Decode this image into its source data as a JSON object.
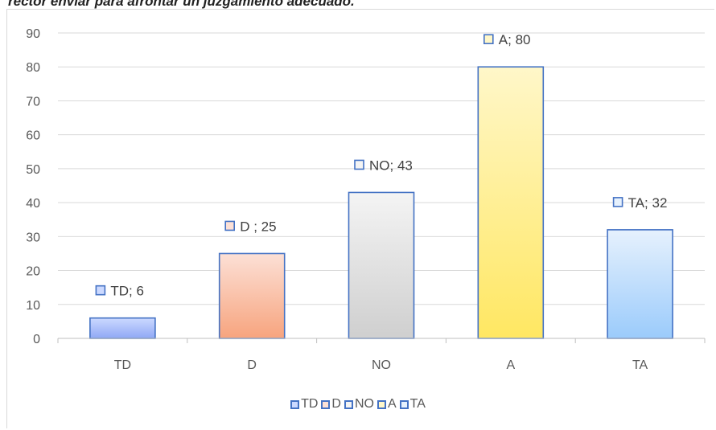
{
  "caption": "rector enviar para afrontar un juzgamiento adecuado.",
  "chart_data": {
    "type": "bar",
    "categories": [
      "TD",
      "D",
      "NO",
      "A",
      "TA"
    ],
    "values": [
      6,
      25,
      43,
      80,
      32
    ],
    "data_labels": [
      "TD; 6",
      "D ; 25",
      "NO; 43",
      "A; 80",
      "TA; 32"
    ],
    "ylim": [
      0,
      90
    ],
    "yticks": [
      "0",
      "10",
      "20",
      "30",
      "40",
      "50",
      "60",
      "70",
      "80",
      "90"
    ],
    "ytick_values": [
      0,
      10,
      20,
      30,
      40,
      50,
      60,
      70,
      80,
      90
    ],
    "grid": true,
    "legend": {
      "placement": "bottom",
      "entries": [
        "TD",
        "D",
        "NO",
        "A",
        "TA"
      ]
    },
    "colors": {
      "TD": [
        "#CCD9FF",
        "#8FA8F5"
      ],
      "D": [
        "#FCE0D6",
        "#F7A47E"
      ],
      "NO": [
        "#F4F4F4",
        "#CFCFCF"
      ],
      "A": [
        "#FFF7C9",
        "#FFE762"
      ],
      "TA": [
        "#E6F1FD",
        "#9BCBFB"
      ],
      "border": "#4472C4"
    }
  }
}
